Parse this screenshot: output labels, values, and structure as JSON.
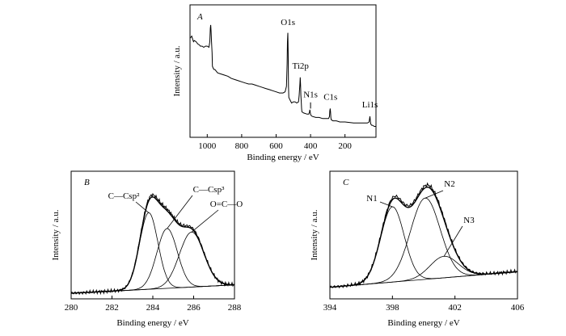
{
  "chart_data": [
    {
      "panel": "A",
      "type": "line",
      "xlabel": "Binding energy / eV",
      "ylabel": "Intensity / a.u.",
      "xlim": [
        1100,
        20
      ],
      "xticks": [
        1000,
        800,
        600,
        400,
        200
      ],
      "x_reversed": true,
      "show_y_ticks": false,
      "ylim": [
        0,
        1
      ],
      "series": [
        {
          "x": [
            1100,
            1090,
            1080,
            1075,
            1065,
            1055,
            1045,
            1040,
            1030,
            1020,
            1010,
            1000,
            990,
            985,
            982,
            980,
            978,
            975,
            972,
            970,
            965,
            960,
            955,
            950,
            940,
            920,
            900,
            880,
            860,
            840,
            820,
            800,
            780,
            760,
            740,
            720,
            700,
            680,
            660,
            640,
            620,
            600,
            580,
            560,
            548,
            540,
            536,
            534,
            532,
            530,
            528,
            526,
            520,
            510,
            500,
            490,
            480,
            470,
            466,
            462,
            460,
            458,
            456,
            454,
            452,
            450,
            440,
            420,
            410,
            406,
            404,
            402,
            400,
            398,
            390,
            370,
            350,
            330,
            310,
            295,
            290,
            288,
            286,
            284,
            282,
            280,
            270,
            250,
            230,
            200,
            150,
            100,
            80,
            70,
            60,
            58,
            56,
            55,
            54,
            53,
            50,
            45,
            40,
            30,
            20
          ],
          "y": [
            0.83,
            0.85,
            0.8,
            0.81,
            0.8,
            0.78,
            0.77,
            0.76,
            0.76,
            0.75,
            0.76,
            0.76,
            0.75,
            0.8,
            0.92,
            0.95,
            0.9,
            0.8,
            0.7,
            0.58,
            0.56,
            0.55,
            0.55,
            0.54,
            0.52,
            0.51,
            0.5,
            0.49,
            0.47,
            0.46,
            0.45,
            0.44,
            0.43,
            0.42,
            0.42,
            0.41,
            0.4,
            0.39,
            0.38,
            0.37,
            0.36,
            0.35,
            0.34,
            0.34,
            0.35,
            0.4,
            0.6,
            0.8,
            0.88,
            0.7,
            0.4,
            0.3,
            0.28,
            0.25,
            0.26,
            0.26,
            0.25,
            0.26,
            0.32,
            0.42,
            0.48,
            0.42,
            0.32,
            0.26,
            0.2,
            0.17,
            0.16,
            0.15,
            0.15,
            0.17,
            0.19,
            0.17,
            0.15,
            0.14,
            0.13,
            0.12,
            0.12,
            0.11,
            0.11,
            0.11,
            0.13,
            0.18,
            0.2,
            0.17,
            0.12,
            0.1,
            0.09,
            0.09,
            0.08,
            0.08,
            0.07,
            0.07,
            0.07,
            0.07,
            0.08,
            0.1,
            0.12,
            0.13,
            0.11,
            0.09,
            0.06,
            0.05,
            0.05,
            0.04,
            0.04
          ]
        }
      ],
      "annotations": [
        {
          "text": "O1s",
          "x": 531,
          "y": 0.92
        },
        {
          "text": "Ti2p",
          "x": 458,
          "y": 0.53
        },
        {
          "text": "N1s",
          "x": 400,
          "y": 0.27
        },
        {
          "text": "C1s",
          "x": 284,
          "y": 0.25
        },
        {
          "text": "Li1s",
          "x": 55,
          "y": 0.18
        }
      ]
    },
    {
      "panel": "B",
      "type": "line",
      "xlabel": "Binding energy / eV",
      "ylabel": "Intensity / a.u.",
      "xlim": [
        280,
        288
      ],
      "xticks": [
        280,
        282,
        284,
        286,
        288
      ],
      "show_y_ticks": false,
      "ylim": [
        0,
        1
      ],
      "peaks": [
        {
          "label": "C—Csp²",
          "center": 283.8,
          "height": 0.64,
          "width": 0.45
        },
        {
          "label": "C—Csp³",
          "center": 284.7,
          "height": 0.5,
          "width": 0.5
        },
        {
          "label": "O=C—O",
          "center": 285.9,
          "height": 0.46,
          "width": 0.6
        }
      ],
      "baseline": {
        "x": [
          280,
          288
        ],
        "y": [
          0.02,
          0.09
        ]
      }
    },
    {
      "panel": "C",
      "type": "line",
      "xlabel": "Binding energy / eV",
      "ylabel": "Intensity / a.u.",
      "xlim": [
        394,
        406
      ],
      "xticks": [
        394,
        398,
        402,
        406
      ],
      "show_y_ticks": false,
      "ylim": [
        0,
        1
      ],
      "peaks": [
        {
          "label": "N1",
          "center": 398.0,
          "height": 0.63,
          "width": 0.75
        },
        {
          "label": "N2",
          "center": 400.1,
          "height": 0.68,
          "width": 0.95
        },
        {
          "label": "N3",
          "center": 401.3,
          "height": 0.18,
          "width": 0.9
        }
      ],
      "baseline": {
        "x": [
          394,
          406
        ],
        "y": [
          0.07,
          0.2
        ]
      }
    }
  ]
}
